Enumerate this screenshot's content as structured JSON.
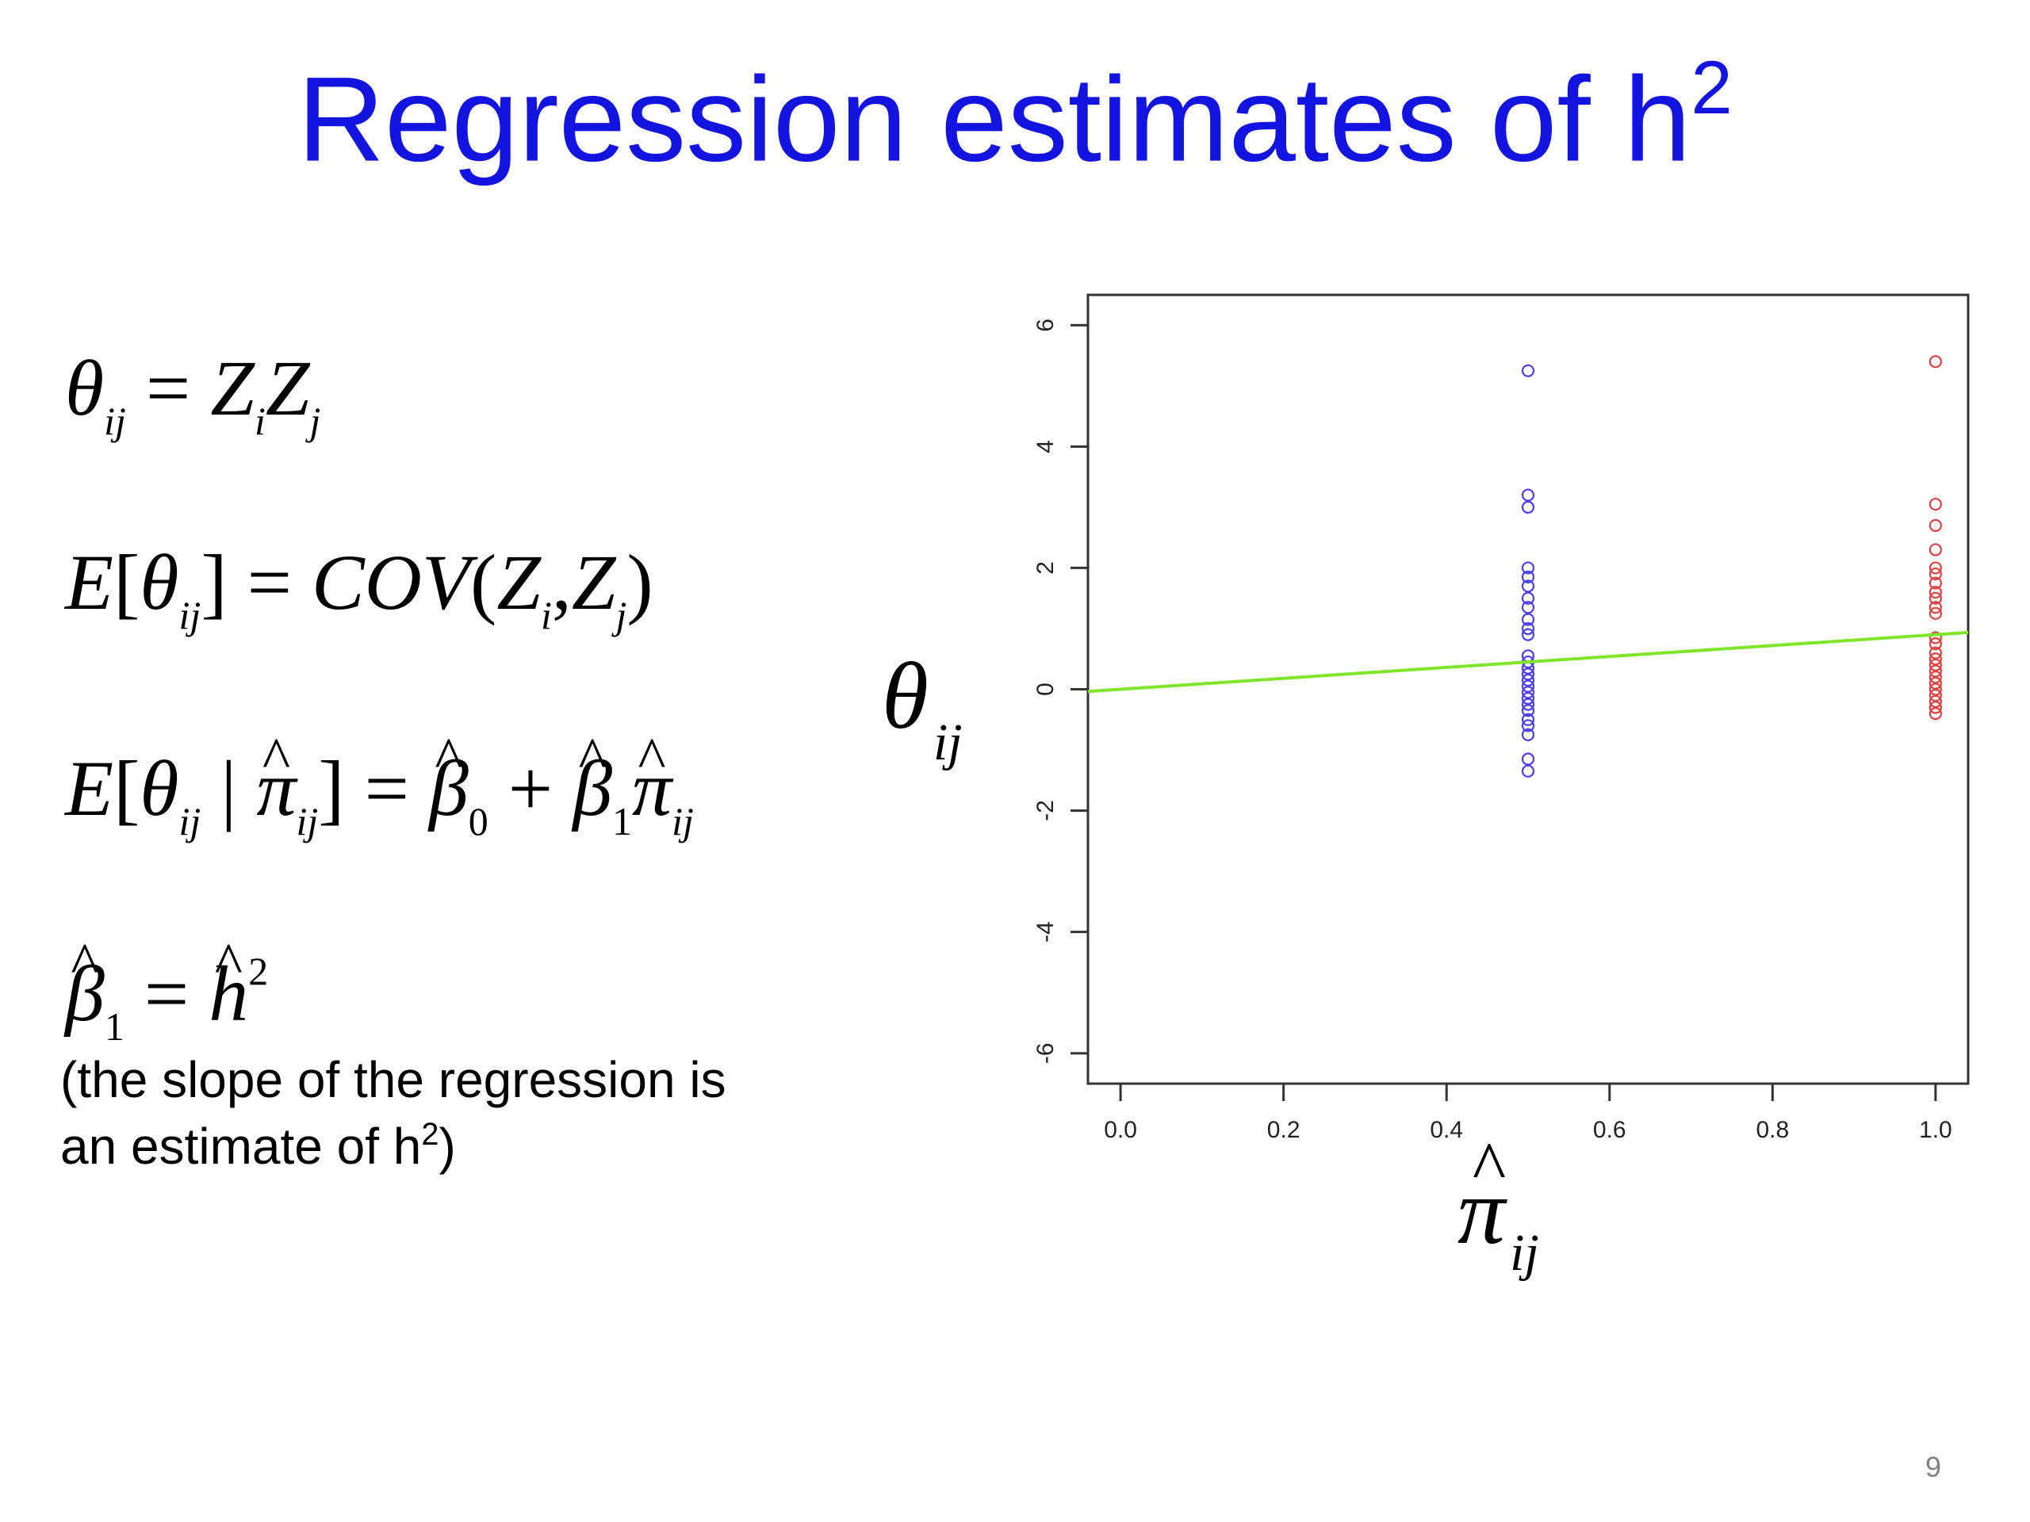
{
  "title": {
    "main": "Regression estimates of h",
    "sup": "2"
  },
  "equations": {
    "eq1": {
      "theta": "θ",
      "ij": "ij",
      "eq": "=",
      "z1": "Z",
      "i": "i",
      "z2": "Z",
      "j": "j"
    },
    "eq2": {
      "e": "E",
      "lb": "[",
      "theta": "θ",
      "ij": "ij",
      "rb": "]",
      "eq": "=",
      "cov": "COV",
      "lp": "(",
      "z1": "Z",
      "i": "i",
      "comma": ",",
      "z2": "Z",
      "j": "j",
      "rp": ")"
    },
    "eq3": {
      "e": "E",
      "lb": "[",
      "theta": "θ",
      "ij": "ij",
      "bar": "|",
      "pi": "π",
      "ij2": "ij",
      "rb": "]",
      "eq": "=",
      "beta0": "β",
      "zero": "0",
      "plus": "+",
      "beta1": "β",
      "one": "1",
      "pi2": "π",
      "ij3": "ij"
    },
    "eq4": {
      "beta": "β",
      "one": "1",
      "eq": "=",
      "h": "h",
      "two": "2"
    }
  },
  "caption": {
    "line1": "(the slope of the regression is",
    "line2_pre": "an estimate of h",
    "line2_sup": "2",
    "line2_post": ")"
  },
  "page_number": "9",
  "chart_data": {
    "type": "scatter",
    "xlim": [
      -0.04,
      1.04
    ],
    "ylim": [
      -6.5,
      6.5
    ],
    "x_ticks": [
      0.0,
      0.2,
      0.4,
      0.6,
      0.8,
      1.0
    ],
    "x_tick_labels": [
      "0.0",
      "0.2",
      "0.4",
      "0.6",
      "0.8",
      "1.0"
    ],
    "y_ticks": [
      -6,
      -4,
      -2,
      0,
      2,
      4,
      6
    ],
    "y_tick_labels": [
      "-6",
      "-4",
      "-2",
      "0",
      "2",
      "4",
      "6"
    ],
    "xlabel": {
      "symbol": "π",
      "sub": "ij"
    },
    "ylabel": {
      "symbol": "θ",
      "sub": "ij"
    },
    "grid": false,
    "series": [
      {
        "color": "#4a3cf0",
        "x": 0.5,
        "y": [
          5.25,
          3.2,
          3.0,
          2.0,
          1.85,
          1.7,
          1.5,
          1.35,
          1.15,
          1.0,
          0.9,
          0.55,
          0.45,
          0.35,
          0.25,
          0.15,
          0.05,
          -0.05,
          -0.15,
          -0.25,
          -0.35,
          -0.5,
          -0.6,
          -0.75,
          -1.15,
          -1.35
        ]
      },
      {
        "color": "#e04040",
        "x": 1.0,
        "y": [
          5.4,
          3.05,
          2.7,
          2.3,
          2.0,
          1.9,
          1.75,
          1.6,
          1.5,
          1.35,
          1.25,
          0.85,
          0.75,
          0.6,
          0.5,
          0.4,
          0.3,
          0.2,
          0.1,
          0.0,
          -0.1,
          -0.2,
          -0.3,
          -0.4
        ]
      }
    ],
    "regression_line": {
      "color": "#7fe52a",
      "intercept": 0.0,
      "slope": 0.9
    }
  }
}
